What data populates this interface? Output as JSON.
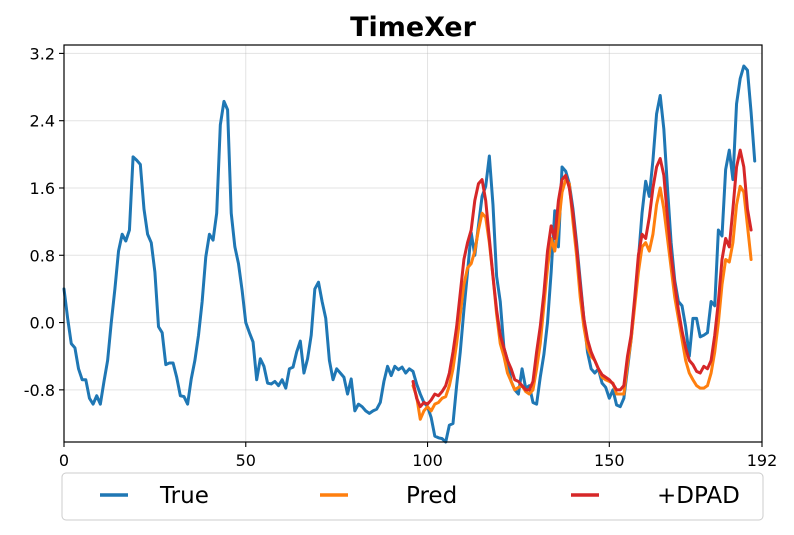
{
  "chart_data": {
    "type": "line",
    "title": "TimeXer",
    "xlabel": "",
    "ylabel": "",
    "xlim": [
      0,
      192
    ],
    "ylim": [
      -1.42,
      3.3
    ],
    "x_ticks": [
      0,
      50,
      100,
      150,
      192
    ],
    "y_ticks": [
      -0.8,
      0.0,
      0.8,
      1.6,
      2.4,
      3.2
    ],
    "y_tick_labels": [
      "-0.8",
      "0.0",
      "0.8",
      "1.6",
      "2.4",
      "3.2"
    ],
    "grid": true,
    "legend_position": "bottom",
    "series": [
      {
        "name": "True",
        "color": "#1f77b4",
        "x_start": 0,
        "values": [
          0.4,
          0.05,
          -0.25,
          -0.3,
          -0.55,
          -0.68,
          -0.68,
          -0.9,
          -0.97,
          -0.87,
          -0.97,
          -0.7,
          -0.45,
          0.0,
          0.4,
          0.85,
          1.05,
          0.97,
          1.1,
          1.97,
          1.93,
          1.88,
          1.35,
          1.05,
          0.95,
          0.6,
          -0.05,
          -0.12,
          -0.5,
          -0.48,
          -0.48,
          -0.65,
          -0.87,
          -0.88,
          -0.97,
          -0.67,
          -0.45,
          -0.15,
          0.25,
          0.78,
          1.05,
          0.98,
          1.3,
          2.35,
          2.63,
          2.53,
          1.3,
          0.9,
          0.7,
          0.38,
          0.0,
          -0.12,
          -0.23,
          -0.68,
          -0.43,
          -0.52,
          -0.72,
          -0.73,
          -0.7,
          -0.75,
          -0.68,
          -0.78,
          -0.55,
          -0.53,
          -0.35,
          -0.22,
          -0.6,
          -0.43,
          -0.15,
          0.4,
          0.48,
          0.25,
          0.05,
          -0.45,
          -0.68,
          -0.55,
          -0.6,
          -0.65,
          -0.85,
          -0.67,
          -1.05,
          -0.97,
          -1.0,
          -1.05,
          -1.08,
          -1.05,
          -1.03,
          -0.95,
          -0.7,
          -0.52,
          -0.63,
          -0.52,
          -0.56,
          -0.53,
          -0.6,
          -0.55,
          -0.58,
          -0.73,
          -0.85,
          -0.95,
          -1.0,
          -1.13,
          -1.35,
          -1.37,
          -1.38,
          -1.42,
          -1.22,
          -1.2,
          -0.75,
          -0.35,
          0.15,
          0.6,
          1.07,
          0.8,
          1.15,
          1.5,
          1.62,
          1.98,
          1.4,
          0.55,
          0.25,
          -0.3,
          -0.45,
          -0.7,
          -0.8,
          -0.85,
          -0.55,
          -0.78,
          -0.75,
          -0.95,
          -0.97,
          -0.65,
          -0.38,
          0.0,
          0.6,
          1.33,
          0.9,
          1.85,
          1.8,
          1.65,
          1.35,
          0.95,
          0.5,
          0.05,
          -0.35,
          -0.55,
          -0.6,
          -0.55,
          -0.72,
          -0.77,
          -0.9,
          -0.8,
          -0.98,
          -1.0,
          -0.9,
          -0.55,
          -0.2,
          0.25,
          0.75,
          1.3,
          1.68,
          1.5,
          1.93,
          2.48,
          2.7,
          2.3,
          1.6,
          0.95,
          0.5,
          0.25,
          0.2,
          -0.05,
          -0.4,
          0.05,
          0.05,
          -0.17,
          -0.15,
          -0.12,
          0.25,
          0.2,
          1.1,
          1.03,
          1.82,
          2.05,
          1.7,
          2.6,
          2.9,
          3.05,
          3.0,
          2.5,
          1.92
        ]
      },
      {
        "name": "Pred",
        "color": "#ff7f0e",
        "x_start": 96,
        "values": [
          -0.75,
          -0.88,
          -1.15,
          -1.05,
          -1.0,
          -1.05,
          -0.97,
          -0.95,
          -0.9,
          -0.88,
          -0.75,
          -0.55,
          -0.25,
          0.1,
          0.45,
          0.65,
          0.7,
          0.85,
          1.1,
          1.3,
          1.25,
          0.95,
          0.55,
          0.1,
          -0.25,
          -0.4,
          -0.6,
          -0.7,
          -0.8,
          -0.77,
          -0.75,
          -0.82,
          -0.85,
          -0.8,
          -0.55,
          -0.25,
          0.2,
          0.65,
          1.0,
          0.85,
          1.15,
          1.55,
          1.7,
          1.65,
          1.2,
          0.8,
          0.3,
          -0.05,
          -0.3,
          -0.4,
          -0.45,
          -0.55,
          -0.65,
          -0.68,
          -0.7,
          -0.72,
          -0.85,
          -0.85,
          -0.85,
          -0.5,
          -0.2,
          0.2,
          0.6,
          0.9,
          0.95,
          0.85,
          1.05,
          1.4,
          1.6,
          1.35,
          1.0,
          0.65,
          0.3,
          0.05,
          -0.2,
          -0.45,
          -0.6,
          -0.68,
          -0.75,
          -0.78,
          -0.78,
          -0.75,
          -0.6,
          -0.35,
          0.0,
          0.45,
          0.75,
          0.72,
          0.95,
          1.4,
          1.62,
          1.55,
          1.15,
          0.75
        ]
      },
      {
        "name": "+DPAD",
        "color": "#d62728",
        "x_start": 96,
        "values": [
          -0.7,
          -0.9,
          -1.0,
          -0.95,
          -0.97,
          -0.92,
          -0.85,
          -0.87,
          -0.82,
          -0.75,
          -0.6,
          -0.35,
          -0.05,
          0.35,
          0.75,
          0.95,
          1.1,
          1.45,
          1.65,
          1.7,
          1.45,
          1.0,
          0.55,
          0.15,
          -0.15,
          -0.3,
          -0.45,
          -0.55,
          -0.68,
          -0.7,
          -0.75,
          -0.8,
          -0.8,
          -0.7,
          -0.35,
          -0.05,
          0.35,
          0.85,
          1.15,
          1.0,
          1.45,
          1.7,
          1.75,
          1.6,
          1.3,
          0.9,
          0.45,
          0.05,
          -0.2,
          -0.35,
          -0.45,
          -0.55,
          -0.62,
          -0.65,
          -0.68,
          -0.73,
          -0.8,
          -0.8,
          -0.75,
          -0.4,
          -0.15,
          0.3,
          0.8,
          1.05,
          1.0,
          1.25,
          1.6,
          1.85,
          1.95,
          1.75,
          1.25,
          0.8,
          0.45,
          0.15,
          -0.1,
          -0.3,
          -0.45,
          -0.5,
          -0.58,
          -0.6,
          -0.52,
          -0.55,
          -0.45,
          -0.15,
          0.25,
          0.75,
          1.0,
          0.9,
          1.35,
          1.85,
          2.05,
          1.85,
          1.35,
          1.1
        ]
      }
    ]
  }
}
